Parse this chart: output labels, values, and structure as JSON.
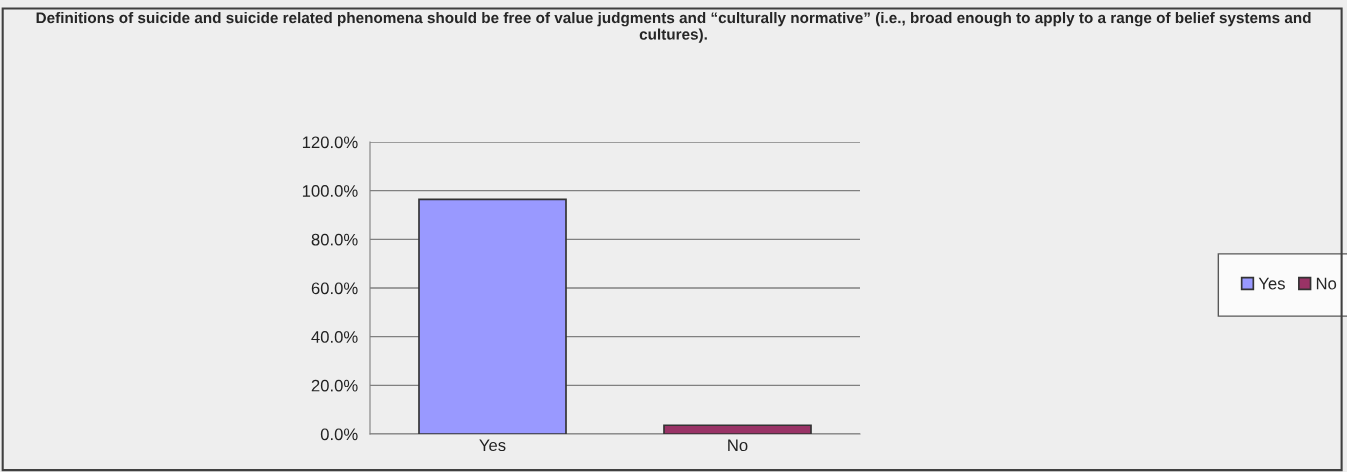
{
  "chart_data": {
    "type": "bar",
    "title": "Definitions of suicide and suicide related phenomena should be free of value judgments and “culturally normative” (i.e., broad enough to apply to a range of belief systems and cultures).",
    "categories": [
      "Yes",
      "No"
    ],
    "series": [
      {
        "name": "Yes",
        "color": "#9999ff",
        "values": [
          96.4,
          null
        ]
      },
      {
        "name": "No",
        "color": "#993366",
        "values": [
          null,
          3.6
        ]
      }
    ],
    "ylim": [
      0,
      120
    ],
    "yticks": [
      {
        "value": 0,
        "label": "0.0%"
      },
      {
        "value": 20,
        "label": "20.0%"
      },
      {
        "value": 40,
        "label": "40.0%"
      },
      {
        "value": 60,
        "label": "60.0%"
      },
      {
        "value": 80,
        "label": "80.0%"
      },
      {
        "value": 100,
        "label": "100.0%"
      },
      {
        "value": 120,
        "label": "120.0%"
      }
    ],
    "grid": "y",
    "legend": "right"
  }
}
